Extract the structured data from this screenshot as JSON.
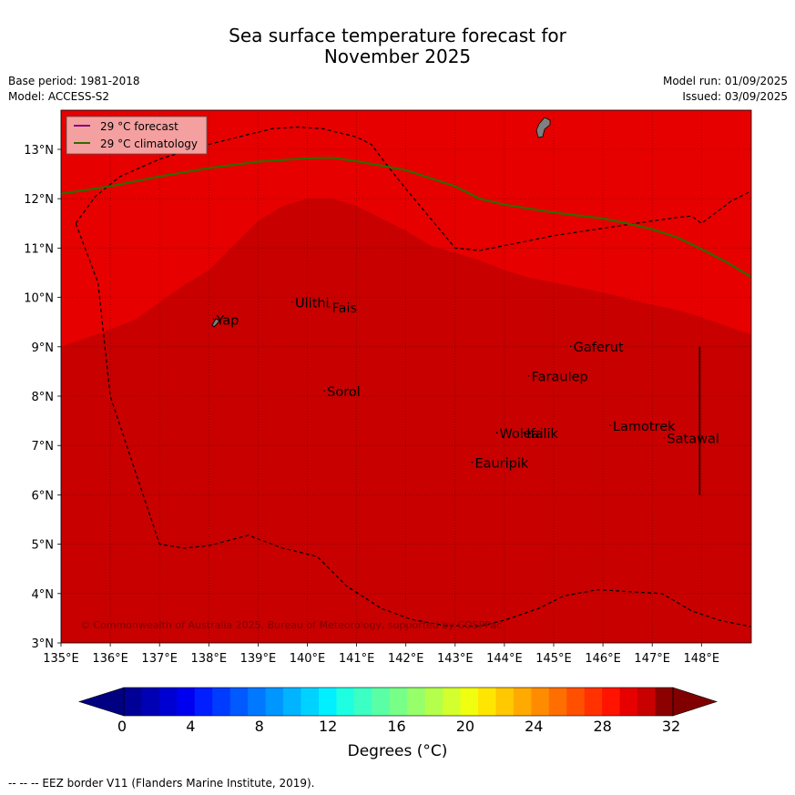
{
  "title_line1": "Sea surface temperature forecast for",
  "title_line2": "November 2025",
  "meta_left": [
    "Base period: 1981-2018",
    "Model: ACCESS-S2"
  ],
  "meta_right": [
    "Model run: 01/09/2025",
    "Issued: 03/09/2025"
  ],
  "map": {
    "lon_range": [
      135,
      149
    ],
    "lat_range": [
      3,
      13.8
    ],
    "lon_ticks": [
      "135°E",
      "136°E",
      "137°E",
      "138°E",
      "139°E",
      "140°E",
      "141°E",
      "142°E",
      "143°E",
      "144°E",
      "145°E",
      "146°E",
      "147°E",
      "148°E"
    ],
    "lat_ticks": [
      "3°N",
      "4°N",
      "5°N",
      "6°N",
      "7°N",
      "8°N",
      "9°N",
      "10°N",
      "11°N",
      "12°N",
      "13°N"
    ],
    "colors": {
      "warm_band": "#e60000",
      "warmer_band": "#c80000",
      "forecast_line": "#800080",
      "climatology_line": "#2e6b00",
      "land": "#808080",
      "legend_bg": "#f4a0a0"
    },
    "legend": [
      {
        "label": "29 °C  forecast"
      },
      {
        "label": "29 °C  climatology"
      }
    ],
    "places": [
      {
        "name": "Yap",
        "lon": 138.15,
        "lat": 9.45
      },
      {
        "name": "Ulithi",
        "lon": 139.75,
        "lat": 9.8
      },
      {
        "name": "Fais",
        "lon": 140.5,
        "lat": 9.7
      },
      {
        "name": "Gaferut",
        "lon": 145.4,
        "lat": 8.9
      },
      {
        "name": "Faraulep",
        "lon": 144.55,
        "lat": 8.3
      },
      {
        "name": "Sorol",
        "lon": 140.4,
        "lat": 8.0
      },
      {
        "name": "Lamotrek",
        "lon": 146.2,
        "lat": 7.3
      },
      {
        "name": "Satawal",
        "lon": 147.3,
        "lat": 7.05
      },
      {
        "name": "Woleai",
        "lon": 143.9,
        "lat": 7.15
      },
      {
        "name": "Ifalik",
        "lon": 144.45,
        "lat": 7.15
      },
      {
        "name": "Eauripik",
        "lon": 143.4,
        "lat": 6.55
      }
    ],
    "climatology_29c": [
      [
        135,
        12.1
      ],
      [
        136,
        12.25
      ],
      [
        137,
        12.45
      ],
      [
        138,
        12.62
      ],
      [
        139,
        12.75
      ],
      [
        140,
        12.82
      ],
      [
        140.5,
        12.83
      ],
      [
        141,
        12.76
      ],
      [
        142,
        12.58
      ],
      [
        143,
        12.25
      ],
      [
        143.5,
        12.0
      ],
      [
        144,
        11.88
      ],
      [
        145,
        11.72
      ],
      [
        146,
        11.6
      ],
      [
        146.5,
        11.5
      ],
      [
        147,
        11.38
      ],
      [
        147.5,
        11.22
      ],
      [
        148,
        10.98
      ],
      [
        148.5,
        10.72
      ],
      [
        149,
        10.42
      ]
    ],
    "warm_boundary": [
      [
        135,
        9.0
      ],
      [
        136,
        9.35
      ],
      [
        136.5,
        9.55
      ],
      [
        137,
        9.9
      ],
      [
        137.5,
        10.25
      ],
      [
        138,
        10.55
      ],
      [
        138.5,
        11.05
      ],
      [
        139,
        11.55
      ],
      [
        139.5,
        11.85
      ],
      [
        140,
        12.0
      ],
      [
        140.5,
        12.0
      ],
      [
        141,
        11.85
      ],
      [
        141.5,
        11.6
      ],
      [
        142,
        11.35
      ],
      [
        142.5,
        11.05
      ],
      [
        143,
        10.9
      ],
      [
        143.5,
        10.75
      ],
      [
        144,
        10.55
      ],
      [
        144.5,
        10.4
      ],
      [
        145,
        10.3
      ],
      [
        145.5,
        10.2
      ],
      [
        146,
        10.1
      ],
      [
        146.5,
        9.98
      ],
      [
        147,
        9.85
      ],
      [
        147.5,
        9.75
      ],
      [
        148,
        9.6
      ],
      [
        148.5,
        9.42
      ],
      [
        149,
        9.25
      ]
    ],
    "eez_border": [
      [
        135.3,
        11.5
      ],
      [
        135.7,
        12.05
      ],
      [
        136.2,
        12.45
      ],
      [
        137,
        12.8
      ],
      [
        137.8,
        13.05
      ],
      [
        138.6,
        13.25
      ],
      [
        139.3,
        13.42
      ],
      [
        139.8,
        13.45
      ],
      [
        140.3,
        13.42
      ],
      [
        141,
        13.25
      ],
      [
        141.3,
        13.1
      ],
      [
        141.6,
        12.7
      ],
      [
        142,
        12.2
      ],
      [
        142.5,
        11.6
      ],
      [
        143,
        11.0
      ],
      [
        143.5,
        10.95
      ],
      [
        144,
        11.05
      ],
      [
        145,
        11.25
      ],
      [
        146,
        11.4
      ],
      [
        146.8,
        11.52
      ],
      [
        147.5,
        11.62
      ],
      [
        147.8,
        11.65
      ],
      [
        148,
        11.5
      ],
      [
        148.6,
        11.95
      ],
      [
        149,
        12.15
      ]
    ],
    "eez_border_south": [
      [
        135.3,
        11.5
      ],
      [
        135.75,
        10.3
      ],
      [
        136,
        8.0
      ],
      [
        136.4,
        6.8
      ],
      [
        137,
        5.0
      ],
      [
        137.5,
        4.92
      ],
      [
        138,
        4.97
      ],
      [
        138.8,
        5.18
      ],
      [
        139.5,
        4.92
      ],
      [
        140.2,
        4.75
      ],
      [
        140.8,
        4.15
      ],
      [
        141.5,
        3.7
      ],
      [
        142.1,
        3.48
      ],
      [
        142.8,
        3.35
      ],
      [
        143.5,
        3.34
      ],
      [
        144,
        3.46
      ],
      [
        144.7,
        3.7
      ],
      [
        145.2,
        3.95
      ],
      [
        145.9,
        4.08
      ],
      [
        146.5,
        4.04
      ],
      [
        147.2,
        4.0
      ],
      [
        147.8,
        3.65
      ],
      [
        148.4,
        3.45
      ],
      [
        149,
        3.33
      ]
    ],
    "dividing_line": {
      "lon": 148.0,
      "lat_range": [
        6.0,
        9.0
      ]
    },
    "copyright": "© Commonwealth of Australia 2025, Bureau of Meteorology, supported by COSPPac"
  },
  "colorbar": {
    "ticks": [
      "0",
      "4",
      "8",
      "12",
      "16",
      "20",
      "24",
      "28",
      "32"
    ],
    "range": [
      0,
      32
    ],
    "label": "Degrees (°C)",
    "colors": [
      "#000096",
      "#0000b4",
      "#0000d2",
      "#0000f0",
      "#001eff",
      "#003cff",
      "#005aff",
      "#0078ff",
      "#0096ff",
      "#00b4ff",
      "#00d2ff",
      "#00f0ff",
      "#1effe1",
      "#3cffc3",
      "#5affa5",
      "#78ff87",
      "#96ff69",
      "#b4ff4b",
      "#d2ff2d",
      "#f0ff0f",
      "#ffe600",
      "#ffc800",
      "#ffaa00",
      "#ff8c00",
      "#ff6e00",
      "#ff5000",
      "#ff3200",
      "#ff1400",
      "#e60000",
      "#c80000",
      "#8c0000"
    ],
    "under_color": "#000080",
    "over_color": "#800000"
  },
  "footnote": "--  --  -- EEZ border V11 (Flanders Marine Institute, 2019)."
}
